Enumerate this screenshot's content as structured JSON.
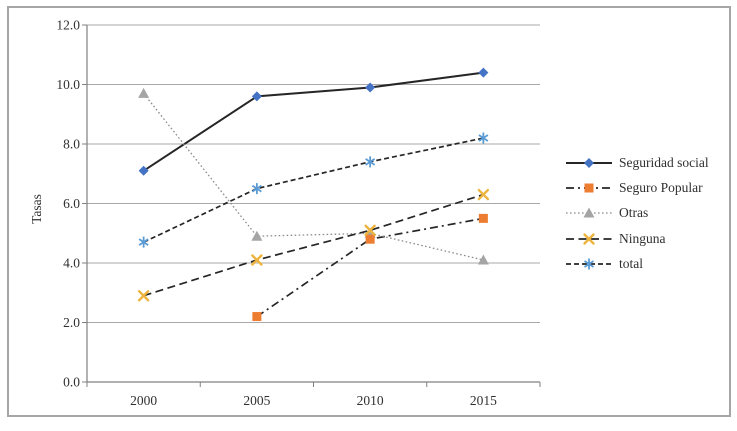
{
  "figure": {
    "background": "#ffffff",
    "border_color": "#a6a6a6",
    "axis_color": "#808080",
    "grid_color": "#a9a9a9",
    "text_color": "#303030"
  },
  "chart_data": {
    "type": "line",
    "title": "",
    "xlabel": "",
    "ylabel": "Tasas",
    "categories": [
      "2000",
      "2005",
      "2010",
      "2015"
    ],
    "ylim": [
      0,
      12
    ],
    "ytick_labels": [
      "0.0",
      "2.0",
      "4.0",
      "6.0",
      "8.0",
      "10.0",
      "12.0"
    ],
    "grid": true,
    "legend_position": "right",
    "series": [
      {
        "name": "Seguridad social",
        "values": [
          7.1,
          9.6,
          9.9,
          10.4
        ],
        "marker": "diamond",
        "marker_color": "#4472c4",
        "line_color": "#262626",
        "dash": "solid"
      },
      {
        "name": "Seguro Popular",
        "values": [
          null,
          2.2,
          4.8,
          5.5
        ],
        "marker": "square",
        "marker_color": "#ed7d31",
        "line_color": "#262626",
        "dash": "dashdot"
      },
      {
        "name": "Otras",
        "values": [
          9.7,
          4.9,
          5.0,
          4.1
        ],
        "marker": "triangle",
        "marker_color": "#a5a5a5",
        "line_color": "#8c8c8c",
        "dash": "dot"
      },
      {
        "name": "Ninguna",
        "values": [
          2.9,
          4.1,
          5.1,
          6.3
        ],
        "marker": "x",
        "marker_color": "#eeb43e",
        "line_color": "#262626",
        "dash": "dash"
      },
      {
        "name": "total",
        "values": [
          4.7,
          6.5,
          7.4,
          8.2
        ],
        "marker": "asterisk",
        "marker_color": "#5b9bd5",
        "line_color": "#262626",
        "dash": "dash2"
      }
    ]
  }
}
